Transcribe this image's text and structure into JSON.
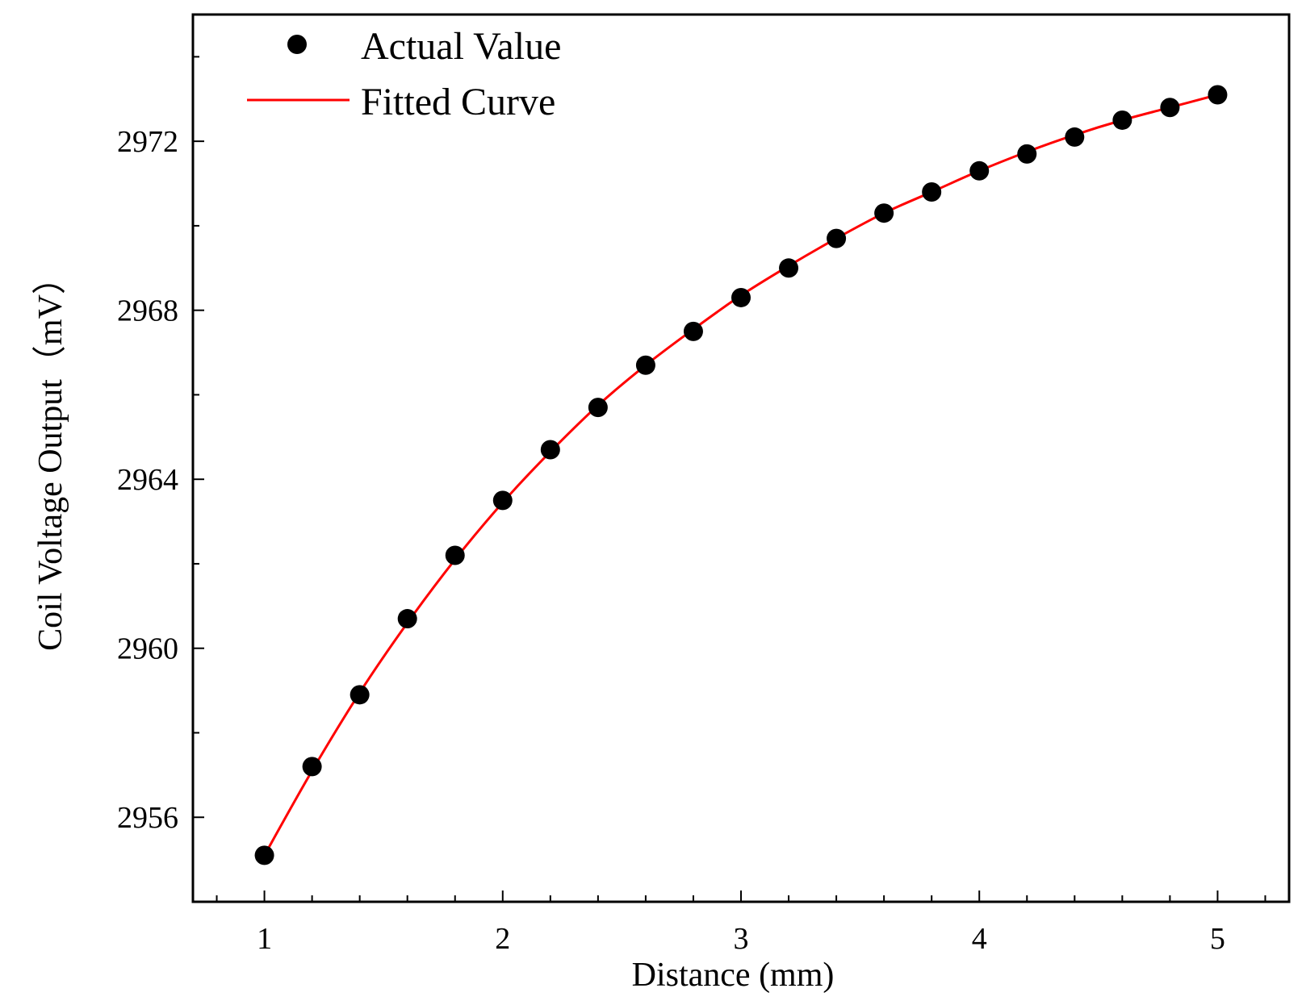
{
  "chart_data": {
    "type": "scatter",
    "title": "",
    "xlabel": "Distance (mm)",
    "ylabel": "Coil Voltage Output（mV）",
    "xlim": [
      0.7,
      5.3
    ],
    "ylim": [
      2954,
      2975
    ],
    "x_ticks": [
      1,
      2,
      3,
      4,
      5
    ],
    "x_tick_labels": [
      "1",
      "2",
      "3",
      "4",
      "5"
    ],
    "y_ticks": [
      2956,
      2960,
      2964,
      2968,
      2972
    ],
    "y_tick_labels": [
      "2956",
      "2960",
      "2964",
      "2968",
      "2972"
    ],
    "grid": false,
    "legend_position": "top-left",
    "series": [
      {
        "name": "Actual Value",
        "kind": "scatter",
        "color": "#000000",
        "x": [
          1.0,
          1.2,
          1.4,
          1.6,
          1.8,
          2.0,
          2.2,
          2.4,
          2.6,
          2.8,
          3.0,
          3.2,
          3.4,
          3.6,
          3.8,
          4.0,
          4.2,
          4.4,
          4.6,
          4.8,
          5.0
        ],
        "y": [
          2955.1,
          2957.2,
          2958.9,
          2960.7,
          2962.2,
          2963.5,
          2964.7,
          2965.7,
          2966.7,
          2967.5,
          2968.3,
          2969.0,
          2969.7,
          2970.3,
          2970.8,
          2971.3,
          2971.7,
          2972.1,
          2972.5,
          2972.8,
          2973.1
        ]
      },
      {
        "name": "Fitted Curve",
        "kind": "line",
        "color": "#ff0000",
        "x": [
          1.0,
          1.2,
          1.4,
          1.6,
          1.8,
          2.0,
          2.2,
          2.4,
          2.6,
          2.8,
          3.0,
          3.2,
          3.4,
          3.6,
          3.8,
          4.0,
          4.2,
          4.4,
          4.6,
          4.8,
          5.0
        ],
        "y": [
          2955.1,
          2957.1,
          2958.95,
          2960.6,
          2962.1,
          2963.45,
          2964.65,
          2965.75,
          2966.7,
          2967.55,
          2968.35,
          2969.05,
          2969.7,
          2970.3,
          2970.8,
          2971.3,
          2971.75,
          2972.15,
          2972.5,
          2972.8,
          2973.1
        ]
      }
    ]
  }
}
